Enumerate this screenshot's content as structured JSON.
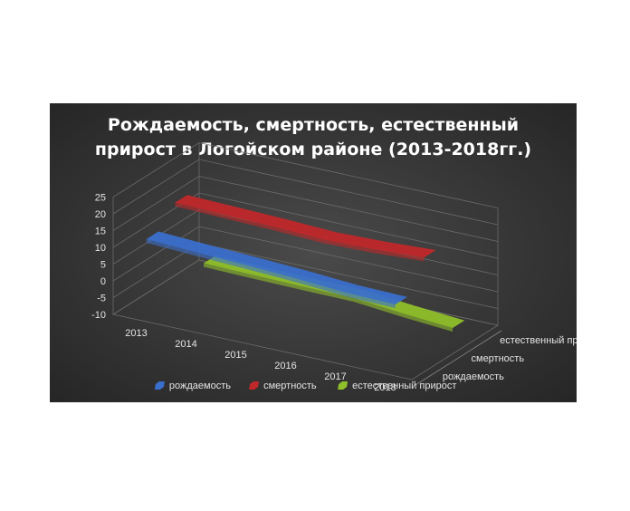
{
  "chart_data": {
    "type": "area",
    "title_lines": [
      "Рождаемость,  смертность,  естественный",
      "прирост  в Логойском  районе  (2013-2018гг.)"
    ],
    "categories": [
      "2013",
      "2014",
      "2015",
      "2016",
      "2017",
      "2018"
    ],
    "ylim": [
      -10,
      25
    ],
    "yticks": [
      "25",
      "20",
      "15",
      "10",
      "5",
      "0",
      "-5",
      "-10"
    ],
    "grid": true,
    "legend_position": "bottom",
    "series": [
      {
        "name": "рождаемость",
        "color": "#3a6fcc",
        "values": [
          12.5,
          11.8,
          11.2,
          10.5,
          9.5,
          9.2
        ]
      },
      {
        "name": "смертность",
        "color": "#c0282a",
        "values": [
          18.0,
          17.6,
          17.2,
          16.6,
          17.0,
          17.8
        ]
      },
      {
        "name": "естественный прирост",
        "color": "#8fbf2a",
        "values": [
          -5.5,
          -5.8,
          -6.0,
          -6.1,
          -7.5,
          -8.6
        ]
      }
    ]
  }
}
